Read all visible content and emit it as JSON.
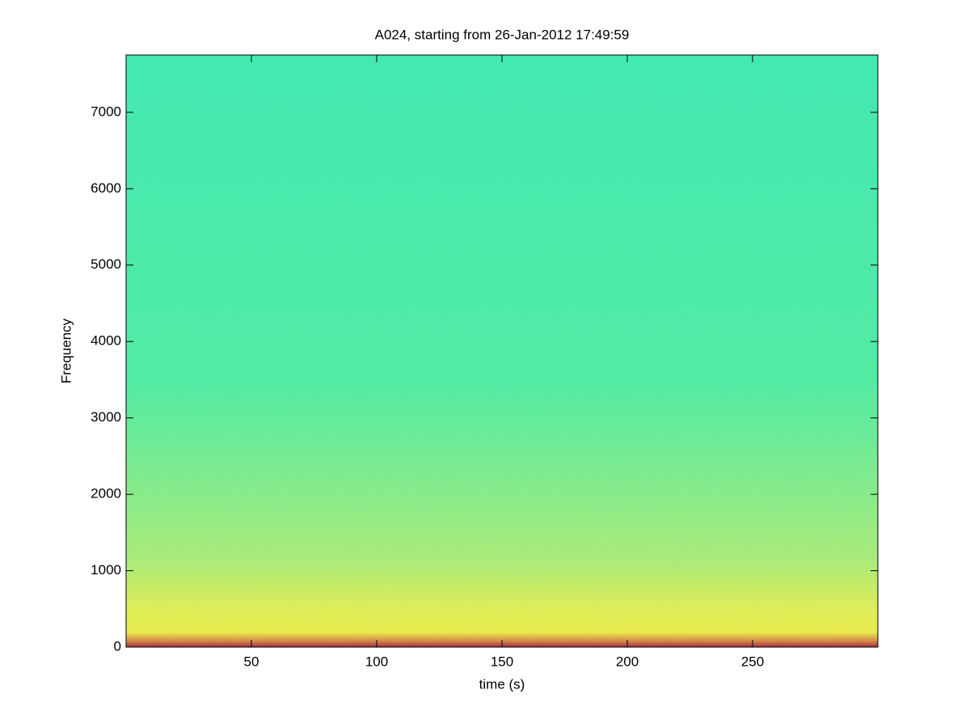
{
  "chart_data": {
    "type": "spectrogram",
    "title": "A024, starting from 26-Jan-2012 17:49:59",
    "x_label": "time (s)",
    "y_label": "Frequency",
    "xlim": [
      0,
      300
    ],
    "xticks": [
      50,
      100,
      150,
      200,
      250
    ],
    "ylim": [
      0,
      7750
    ],
    "yticks": [
      0,
      1000,
      2000,
      3000,
      4000,
      5000,
      6000,
      7000
    ],
    "colormap": "jet"
  }
}
